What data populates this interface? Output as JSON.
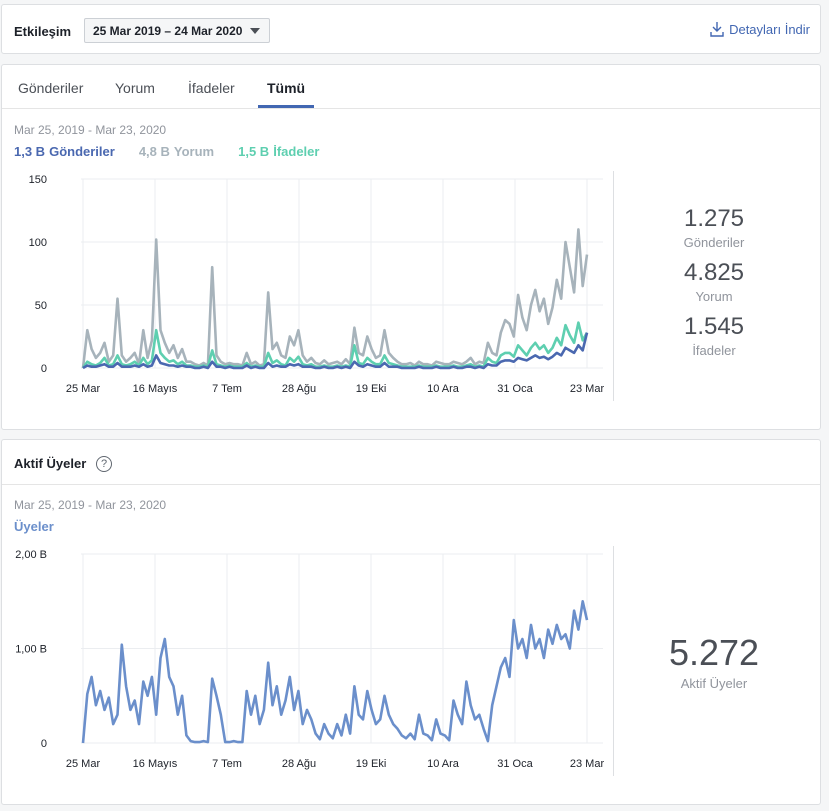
{
  "header": {
    "title": "Etkileşim",
    "date_range_selected": "25 Mar 2019 – 24 Mar 2020",
    "download_label": "Detayları İndir"
  },
  "engagement": {
    "tabs": [
      {
        "label": "Gönderiler",
        "active": false
      },
      {
        "label": "Yorum",
        "active": false
      },
      {
        "label": "İfadeler",
        "active": false
      },
      {
        "label": "Tümü",
        "active": true
      }
    ],
    "range_text": "Mar 25, 2019 - Mar 23, 2020",
    "legend": [
      {
        "value": "1,3 B",
        "name": "Gönderiler",
        "color": "#4a68b0"
      },
      {
        "value": "4,8 B",
        "name": "Yorum",
        "color": "#a7b3bb"
      },
      {
        "value": "1,5 B",
        "name": "İfadeler",
        "color": "#5ecfb0"
      }
    ],
    "stats": [
      {
        "value": "1.275",
        "label": "Gönderiler"
      },
      {
        "value": "4.825",
        "label": "Yorum"
      },
      {
        "value": "1.545",
        "label": "İfadeler"
      }
    ]
  },
  "members": {
    "title": "Aktif Üyeler",
    "help_icon": "question-icon",
    "range_text": "Mar 25, 2019 - Mar 23, 2020",
    "legend_label": "Üyeler",
    "stat_value": "5.272",
    "stat_label": "Aktif Üyeler"
  },
  "chart_data": [
    {
      "type": "line",
      "x_ticks": [
        "25 Mar",
        "16 Mayıs",
        "7 Tem",
        "28 Ağu",
        "19 Eki",
        "10 Ara",
        "31 Oca",
        "23 Mar"
      ],
      "y_ticks": [
        "0",
        "50",
        "100",
        "150"
      ],
      "ylim": [
        0,
        150
      ],
      "series": [
        {
          "name": "Yorum",
          "color": "#a7b3bb",
          "values": [
            0,
            30,
            15,
            8,
            12,
            20,
            5,
            10,
            55,
            10,
            5,
            8,
            12,
            3,
            30,
            8,
            22,
            102,
            30,
            20,
            12,
            18,
            8,
            15,
            5,
            5,
            3,
            2,
            4,
            2,
            80,
            10,
            5,
            3,
            4,
            3,
            3,
            2,
            12,
            3,
            5,
            2,
            3,
            60,
            15,
            20,
            10,
            8,
            25,
            18,
            30,
            10,
            5,
            8,
            4,
            3,
            6,
            3,
            4,
            5,
            3,
            7,
            3,
            32,
            12,
            10,
            25,
            15,
            8,
            10,
            30,
            12,
            8,
            5,
            3,
            3,
            4,
            2,
            5,
            3,
            3,
            2,
            5,
            4,
            3,
            3,
            5,
            4,
            3,
            5,
            8,
            3,
            5,
            4,
            20,
            12,
            10,
            28,
            38,
            35,
            25,
            58,
            40,
            30,
            50,
            62,
            45,
            55,
            35,
            48,
            70,
            55,
            100,
            80,
            60,
            110,
            65,
            90
          ]
        },
        {
          "name": "İfadeler",
          "color": "#5ecfb0",
          "values": [
            0,
            5,
            3,
            2,
            4,
            8,
            2,
            3,
            10,
            3,
            2,
            3,
            5,
            2,
            8,
            3,
            6,
            30,
            12,
            8,
            5,
            6,
            3,
            5,
            2,
            2,
            1,
            1,
            2,
            1,
            14,
            3,
            2,
            1,
            2,
            1,
            1,
            1,
            4,
            1,
            2,
            1,
            1,
            12,
            4,
            6,
            3,
            2,
            8,
            5,
            9,
            3,
            2,
            3,
            1,
            1,
            2,
            1,
            1,
            2,
            1,
            2,
            1,
            18,
            4,
            3,
            8,
            5,
            3,
            3,
            10,
            4,
            3,
            2,
            1,
            1,
            1,
            1,
            2,
            1,
            1,
            1,
            2,
            1,
            1,
            1,
            2,
            1,
            1,
            2,
            3,
            1,
            2,
            1,
            8,
            5,
            4,
            10,
            12,
            12,
            9,
            18,
            14,
            10,
            16,
            20,
            15,
            18,
            12,
            16,
            24,
            18,
            34,
            26,
            20,
            36,
            22,
            28
          ]
        },
        {
          "name": "Gönderiler",
          "color": "#4a68b0",
          "values": [
            0,
            2,
            1,
            1,
            2,
            3,
            1,
            1,
            4,
            1,
            1,
            1,
            2,
            1,
            3,
            1,
            2,
            10,
            4,
            3,
            2,
            2,
            1,
            2,
            1,
            1,
            0,
            0,
            1,
            0,
            5,
            1,
            1,
            0,
            1,
            0,
            0,
            0,
            2,
            0,
            1,
            0,
            0,
            4,
            1,
            2,
            1,
            1,
            3,
            2,
            3,
            1,
            1,
            1,
            0,
            0,
            1,
            0,
            0,
            1,
            0,
            1,
            0,
            5,
            2,
            1,
            3,
            2,
            1,
            1,
            4,
            1,
            1,
            1,
            0,
            0,
            0,
            0,
            1,
            0,
            0,
            0,
            1,
            0,
            0,
            0,
            1,
            0,
            0,
            1,
            1,
            0,
            1,
            0,
            3,
            2,
            2,
            5,
            6,
            6,
            5,
            8,
            7,
            6,
            8,
            10,
            8,
            9,
            7,
            9,
            12,
            10,
            16,
            14,
            12,
            18,
            14,
            28
          ]
        }
      ]
    },
    {
      "type": "line",
      "x_ticks": [
        "25 Mar",
        "16 Mayıs",
        "7 Tem",
        "28 Ağu",
        "19 Eki",
        "10 Ara",
        "31 Oca",
        "23 Mar"
      ],
      "y_ticks": [
        "0",
        "1,00 B",
        "2,00 B"
      ],
      "ylim": [
        0,
        2000
      ],
      "series": [
        {
          "name": "Üyeler",
          "color": "#6b8fcb",
          "values": [
            0,
            520,
            700,
            400,
            550,
            350,
            480,
            200,
            300,
            1040,
            600,
            350,
            450,
            200,
            650,
            500,
            700,
            300,
            900,
            1100,
            700,
            600,
            300,
            500,
            80,
            20,
            10,
            10,
            20,
            10,
            680,
            500,
            300,
            10,
            10,
            20,
            10,
            10,
            550,
            300,
            500,
            200,
            350,
            850,
            400,
            600,
            300,
            450,
            700,
            350,
            550,
            200,
            350,
            250,
            100,
            40,
            200,
            100,
            50,
            200,
            80,
            300,
            100,
            600,
            300,
            250,
            550,
            350,
            200,
            250,
            500,
            300,
            200,
            150,
            80,
            50,
            100,
            40,
            300,
            100,
            80,
            30,
            250,
            100,
            80,
            30,
            450,
            300,
            200,
            650,
            400,
            250,
            300,
            150,
            20,
            400,
            600,
            800,
            900,
            700,
            1300,
            1000,
            1100,
            900,
            1250,
            1000,
            1100,
            900,
            1200,
            1050,
            1250,
            1100,
            1150,
            1000,
            1400,
            1200,
            1500,
            1300
          ]
        }
      ]
    }
  ]
}
